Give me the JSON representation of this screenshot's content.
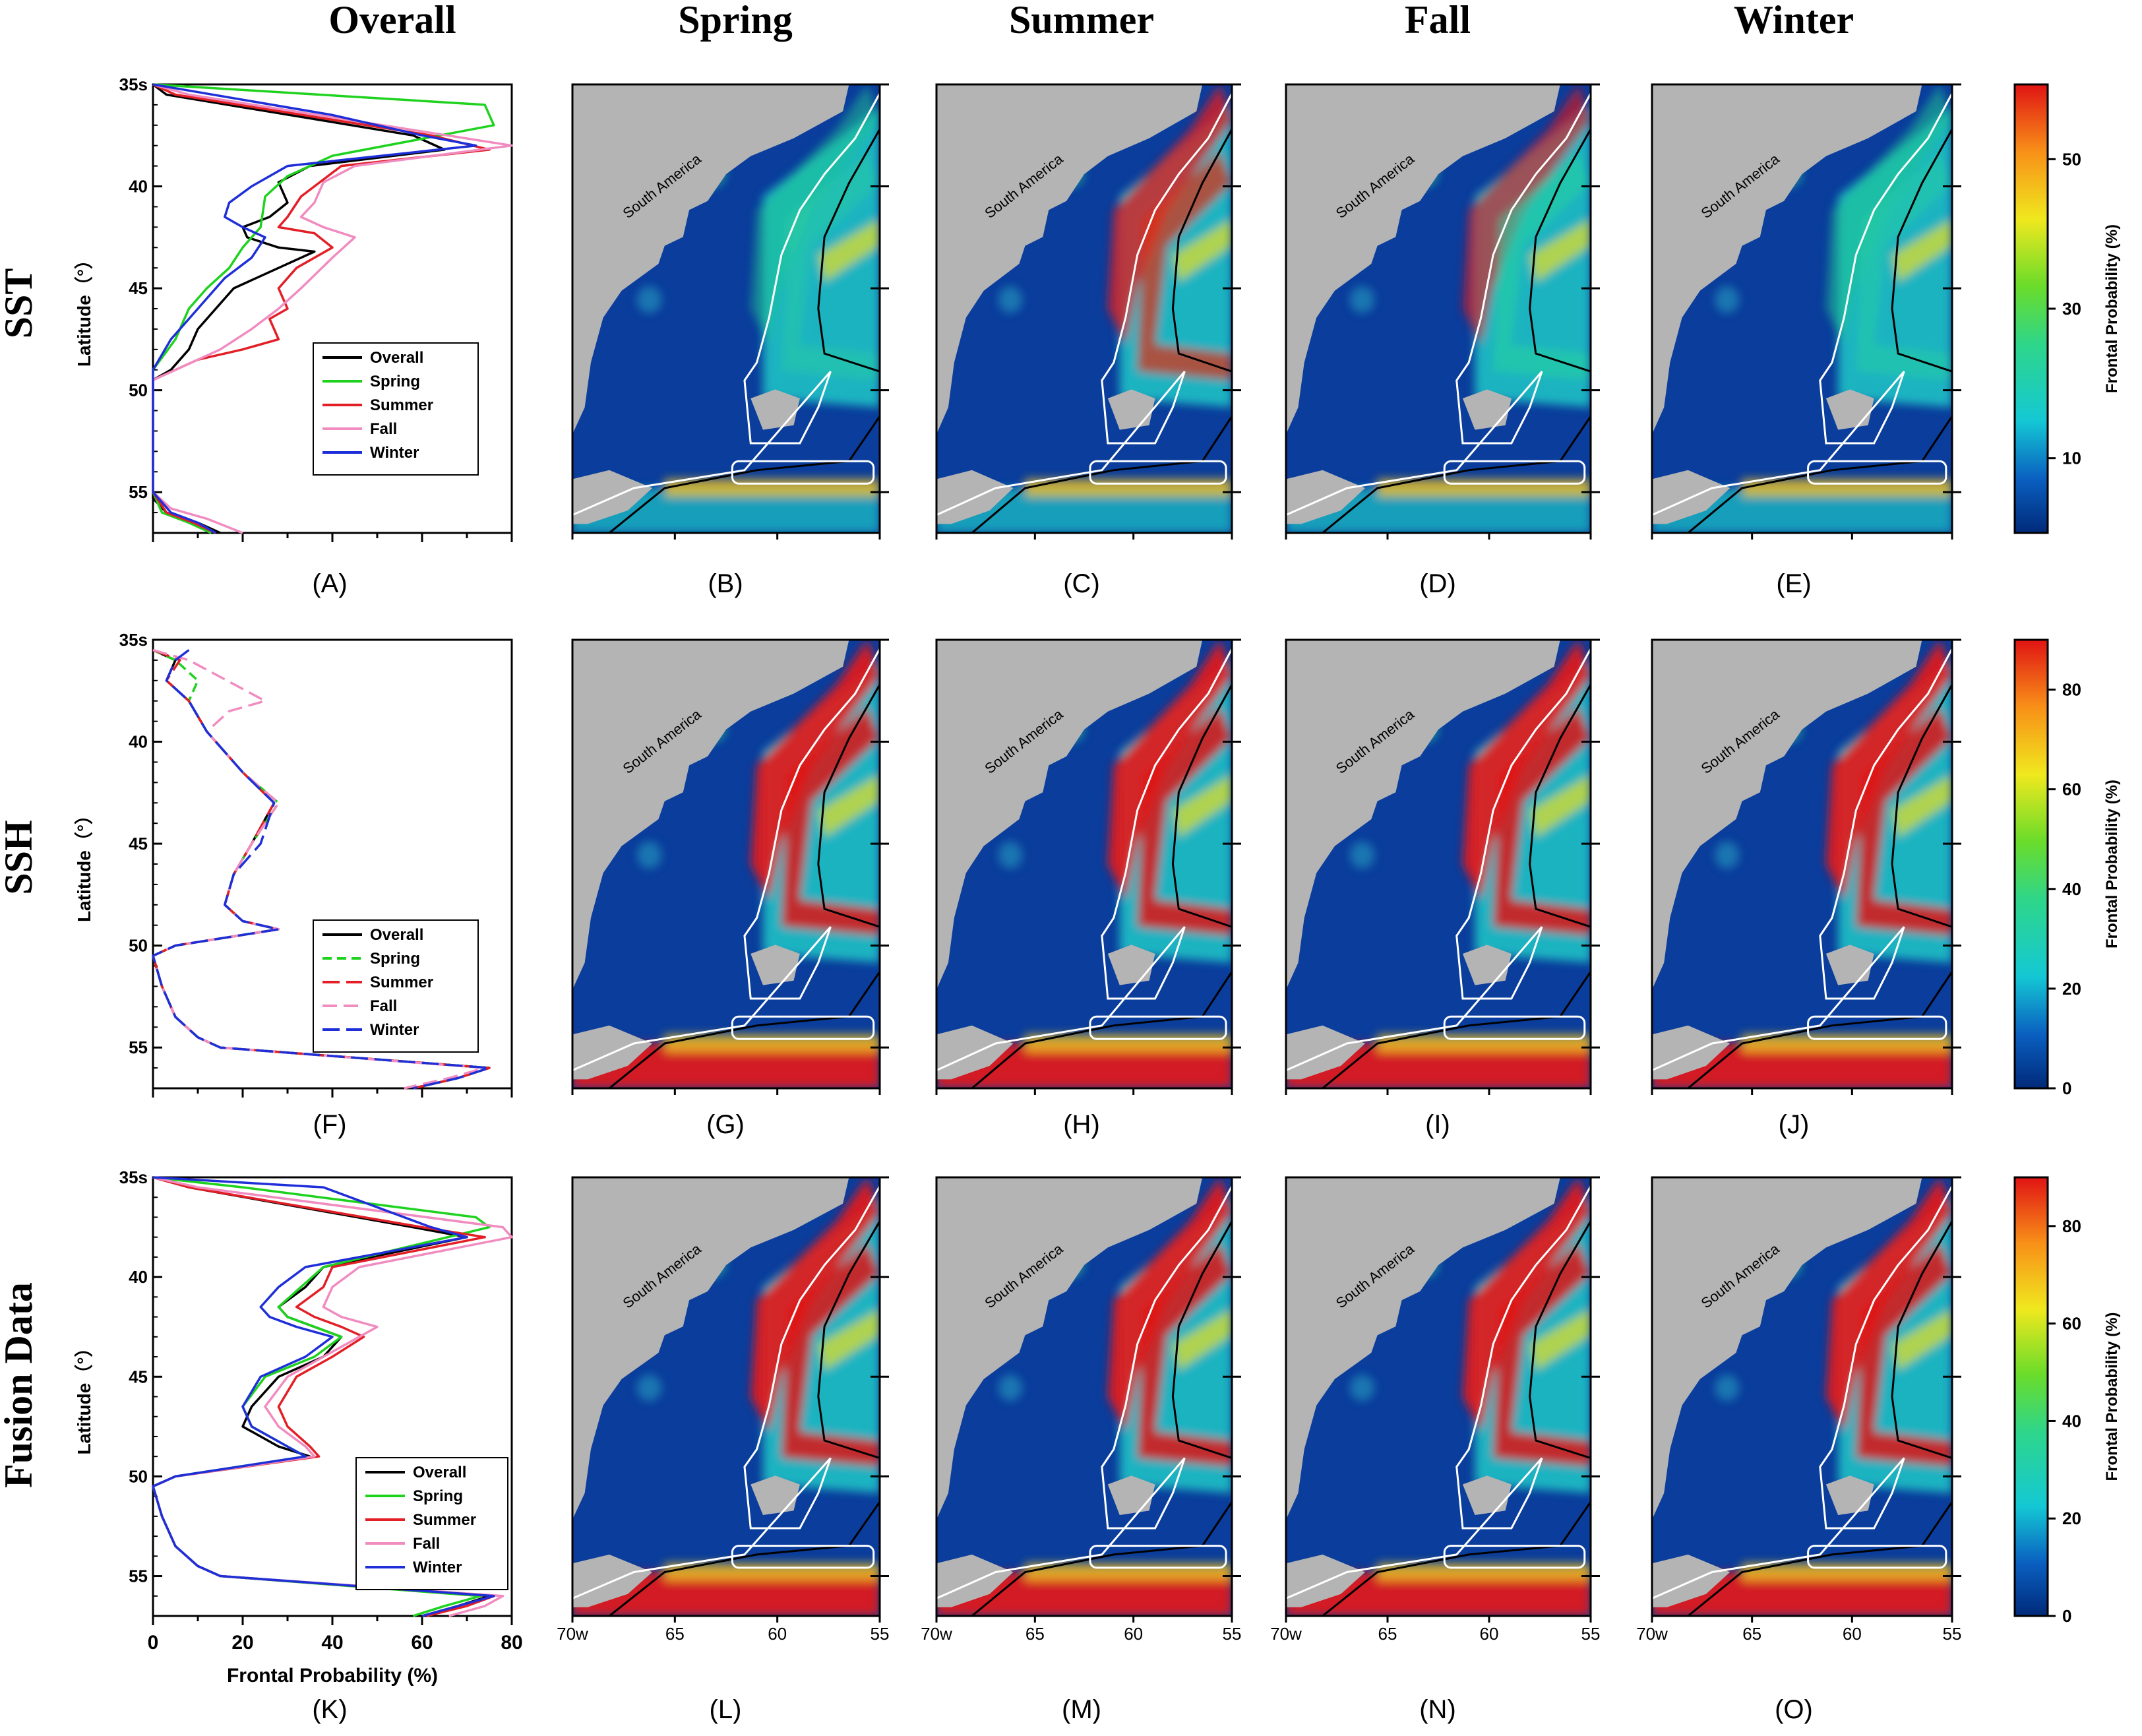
{
  "column_titles": [
    "Overall",
    "Spring",
    "Summer",
    "Fall",
    "Winter"
  ],
  "row_titles": [
    "SST",
    "SSH",
    "Fusion Data"
  ],
  "panel_labels": [
    "(A)",
    "(B)",
    "(C)",
    "(D)",
    "(E)",
    "(F)",
    "(G)",
    "(H)",
    "(I)",
    "(J)",
    "(K)",
    "(L)",
    "(M)",
    "(N)",
    "(O)"
  ],
  "map_region_label": "South America",
  "profile_axis": {
    "ylabel": "Latitude（°）",
    "xlabel": "Frontal Probability (%)",
    "yticks": [
      "35s",
      "40",
      "45",
      "50",
      "55"
    ],
    "xticks": [
      "0",
      "20",
      "40",
      "60",
      "80"
    ]
  },
  "map_axis": {
    "xticks": [
      "70w",
      "65",
      "60",
      "55"
    ]
  },
  "colorbars": [
    {
      "label": "Frontal Probability (%)",
      "ticks": [
        "10",
        "30",
        "50"
      ],
      "tick_values": [
        10,
        30,
        50
      ],
      "range": [
        0,
        60
      ]
    },
    {
      "label": "Frontal Probability (%)",
      "ticks": [
        "0",
        "20",
        "40",
        "60",
        "80"
      ],
      "tick_values": [
        0,
        20,
        40,
        60,
        80
      ],
      "range": [
        0,
        90
      ]
    },
    {
      "label": "Frontal Probability (%)",
      "ticks": [
        "0",
        "20",
        "40",
        "60",
        "80"
      ],
      "tick_values": [
        0,
        20,
        40,
        60,
        80
      ],
      "range": [
        0,
        90
      ]
    }
  ],
  "colors": {
    "Overall": "#000000",
    "Spring": "#1ed21e",
    "Summer": "#e21f26",
    "Fall": "#f08cc0",
    "Winter": "#1f2fd8",
    "land": "#b4b4b4",
    "ocean_low": "#0a3d9c"
  },
  "chart_data": [
    {
      "type": "line",
      "title": "SST",
      "xlim": [
        0,
        80
      ],
      "ylim": [
        35,
        57
      ],
      "legend": "bottom-right",
      "series": [
        {
          "name": "Overall",
          "x": [
            0,
            3,
            58,
            65,
            35,
            28,
            30,
            26,
            20,
            21,
            28,
            36,
            28,
            18,
            14,
            10,
            8,
            4,
            0,
            0,
            0,
            0,
            0,
            0,
            3,
            10,
            15
          ],
          "y": [
            35,
            35.5,
            37.5,
            38.2,
            39,
            39.8,
            40.8,
            41.5,
            42,
            42.5,
            43,
            43.2,
            44,
            45,
            46,
            47,
            48,
            49,
            49.5,
            50,
            52,
            54,
            55,
            55.3,
            56,
            56.5,
            57
          ]
        },
        {
          "name": "Spring",
          "x": [
            0,
            74,
            76,
            40,
            30,
            25,
            24,
            20,
            17,
            12,
            8,
            5,
            0,
            0,
            0,
            0,
            2,
            8,
            13
          ],
          "y": [
            35,
            36,
            37,
            38.5,
            39.5,
            40.5,
            42,
            43,
            44,
            45,
            46,
            47.5,
            49,
            52,
            54,
            55,
            56,
            56.5,
            57
          ]
        },
        {
          "name": "Summer",
          "x": [
            0,
            5,
            62,
            75,
            42,
            36,
            33,
            30,
            28,
            36,
            40,
            32,
            28,
            30,
            26,
            28,
            20,
            10,
            0,
            0,
            0,
            3,
            9,
            14
          ],
          "y": [
            35,
            35.5,
            37.5,
            38.2,
            39,
            40,
            40.5,
            41.5,
            42,
            42.3,
            43,
            44,
            45,
            46,
            46.5,
            47.5,
            48,
            48.5,
            49.5,
            52,
            55,
            56,
            56.5,
            57
          ]
        },
        {
          "name": "Fall",
          "x": [
            0,
            8,
            80,
            45,
            38,
            36,
            33,
            38,
            45,
            40,
            33,
            28,
            22,
            15,
            0,
            0,
            0,
            4,
            12,
            20
          ],
          "y": [
            35,
            35.5,
            38,
            39,
            39.8,
            40.8,
            41.5,
            42,
            42.5,
            43.5,
            45,
            46,
            47,
            48,
            49.5,
            52,
            55,
            55.8,
            56.3,
            57
          ]
        },
        {
          "name": "Winter",
          "x": [
            0,
            40,
            60,
            72,
            30,
            22,
            17,
            16,
            20,
            25,
            22,
            16,
            12,
            8,
            4,
            0,
            0,
            0,
            4,
            10,
            14
          ],
          "y": [
            35,
            36.5,
            37.5,
            38,
            39,
            40,
            40.8,
            41.5,
            42,
            42.5,
            43.5,
            44.5,
            45.5,
            46.5,
            47.5,
            49,
            52,
            55,
            56,
            56.5,
            57
          ]
        }
      ]
    },
    {
      "type": "line",
      "title": "SSH",
      "xlim": [
        0,
        80
      ],
      "ylim": [
        35,
        57
      ],
      "legend": "bottom-right",
      "series": [
        {
          "name": "Overall",
          "x": [
            0,
            5,
            3,
            8,
            12,
            20,
            27,
            22,
            18,
            16,
            20,
            28,
            5,
            0,
            2,
            5,
            10,
            15,
            75,
            68,
            58
          ],
          "y": [
            35.5,
            36,
            37,
            38,
            39.5,
            41.5,
            43,
            45,
            46.5,
            48,
            48.8,
            49.2,
            50,
            50.5,
            52,
            53.5,
            54.5,
            55,
            56,
            56.5,
            57
          ]
        },
        {
          "name": "Spring",
          "x": [
            0,
            5,
            10,
            8,
            12,
            20,
            28,
            22,
            18,
            16,
            20,
            28,
            5,
            0,
            2,
            5,
            10,
            15,
            75,
            68,
            58
          ],
          "y": [
            35.5,
            36,
            37,
            38,
            39.5,
            41.5,
            43,
            45,
            46.5,
            48,
            48.8,
            49.2,
            50,
            50.5,
            52,
            53.5,
            54.5,
            55,
            56,
            56.5,
            57
          ]
        },
        {
          "name": "Summer",
          "x": [
            0,
            6,
            3,
            8,
            12,
            20,
            27,
            22,
            18,
            16,
            20,
            28,
            5,
            0,
            2,
            5,
            10,
            15,
            75,
            68,
            58
          ],
          "y": [
            35.5,
            36,
            37,
            38,
            39.5,
            41.5,
            43,
            45,
            46.5,
            48,
            48.8,
            49.2,
            50,
            50.5,
            52,
            53.5,
            54.5,
            55,
            56,
            56.5,
            57
          ]
        },
        {
          "name": "Fall",
          "x": [
            0,
            8,
            25,
            17,
            12,
            20,
            28,
            22,
            18,
            16,
            20,
            28,
            5,
            0,
            2,
            5,
            10,
            15,
            74,
            66,
            56
          ],
          "y": [
            35.5,
            36,
            38,
            38.5,
            39.5,
            41.5,
            43,
            45,
            46.5,
            48,
            48.8,
            49.2,
            50,
            50.5,
            52,
            53.5,
            54.5,
            55,
            56,
            56.5,
            57
          ]
        },
        {
          "name": "Winter",
          "x": [
            8,
            5,
            3,
            8,
            12,
            20,
            27,
            24,
            18,
            16,
            20,
            28,
            5,
            0,
            2,
            5,
            10,
            15,
            75,
            68,
            58
          ],
          "y": [
            35.5,
            36,
            37,
            38,
            39.5,
            41.5,
            43,
            45,
            46.5,
            48,
            48.8,
            49.2,
            50,
            50.5,
            52,
            53.5,
            54.5,
            55,
            56,
            56.5,
            57
          ]
        }
      ]
    },
    {
      "type": "line",
      "title": "Fusion Data",
      "xlim": [
        0,
        80
      ],
      "ylim": [
        35,
        57
      ],
      "legend": "bottom-right",
      "series": [
        {
          "name": "Overall",
          "x": [
            0,
            8,
            58,
            70,
            38,
            34,
            28,
            30,
            36,
            42,
            38,
            28,
            22,
            20,
            28,
            35,
            5,
            0,
            2,
            5,
            10,
            15,
            75,
            68,
            60
          ],
          "y": [
            35,
            35.5,
            37.5,
            38,
            39.5,
            40.5,
            41.5,
            42,
            42.5,
            43,
            44,
            45,
            46.5,
            47.5,
            48.5,
            49,
            50,
            50.5,
            52,
            53.5,
            54.5,
            55,
            56,
            56.5,
            57
          ]
        },
        {
          "name": "Spring",
          "x": [
            0,
            20,
            72,
            75,
            38,
            33,
            28,
            30,
            36,
            42,
            36,
            25,
            20,
            22,
            30,
            34,
            5,
            0,
            2,
            5,
            10,
            15,
            73,
            65,
            58
          ],
          "y": [
            35,
            35.5,
            37,
            37.5,
            39.5,
            40.5,
            41.5,
            42,
            42.5,
            43,
            44,
            45,
            46.5,
            47.5,
            48.5,
            49,
            50,
            50.5,
            52,
            53.5,
            54.5,
            55,
            56,
            56.5,
            57
          ]
        },
        {
          "name": "Summer",
          "x": [
            0,
            8,
            60,
            74,
            40,
            38,
            32,
            36,
            42,
            47,
            40,
            32,
            28,
            30,
            35,
            37,
            5,
            0,
            2,
            5,
            10,
            15,
            76,
            70,
            61
          ],
          "y": [
            35,
            35.5,
            37.5,
            38,
            39.5,
            40.5,
            41.5,
            42,
            42.5,
            43,
            44,
            45,
            46.5,
            47.5,
            48.5,
            49,
            50,
            50.5,
            52,
            53.5,
            54.5,
            55,
            56,
            56.5,
            57
          ]
        },
        {
          "name": "Fall",
          "x": [
            0,
            10,
            78,
            80,
            46,
            40,
            38,
            42,
            50,
            46,
            38,
            30,
            25,
            28,
            34,
            36,
            5,
            0,
            2,
            5,
            10,
            15,
            78,
            74,
            66
          ],
          "y": [
            35,
            35.5,
            37.5,
            38,
            39.5,
            40.5,
            41.5,
            42,
            42.5,
            43,
            44,
            45,
            46.5,
            47.5,
            48.5,
            49,
            50,
            50.5,
            52,
            53.5,
            54.5,
            55,
            56,
            56.5,
            57
          ]
        },
        {
          "name": "Winter",
          "x": [
            0,
            38,
            62,
            70,
            34,
            28,
            24,
            26,
            32,
            40,
            34,
            24,
            20,
            22,
            30,
            34,
            5,
            0,
            2,
            5,
            10,
            15,
            76,
            68,
            60
          ],
          "y": [
            35,
            35.5,
            37.5,
            38,
            39.5,
            40.5,
            41.5,
            42,
            42.5,
            43,
            44,
            45,
            46.5,
            47.5,
            48.5,
            49,
            50,
            50.5,
            52,
            53.5,
            54.5,
            55,
            56,
            56.5,
            57
          ]
        }
      ]
    },
    {
      "type": "heatmap",
      "rows": [
        "SST",
        "SSH",
        "Fusion Data"
      ],
      "columns": [
        "Spring",
        "Summer",
        "Fall",
        "Winter"
      ],
      "xlim": [
        -70,
        -55
      ],
      "ylim": [
        35,
        57
      ]
    }
  ]
}
